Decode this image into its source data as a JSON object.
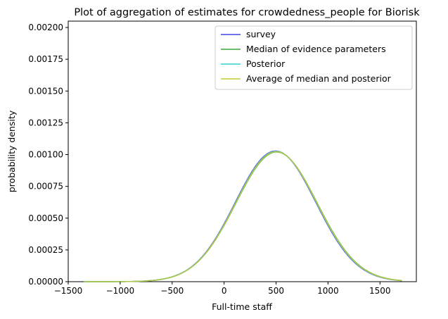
{
  "chart_data": {
    "type": "line",
    "title": "Plot of aggregation of estimates for crowdedness_people for Biorisk",
    "xlabel": "Full-time staff",
    "ylabel": "probability density",
    "xlim": [
      -1500,
      1850
    ],
    "ylim": [
      0,
      0.00205
    ],
    "x_ticks": [
      -1500,
      -1000,
      -500,
      0,
      500,
      1000,
      1500
    ],
    "x_tick_labels": [
      "−1500",
      "−1000",
      "−500",
      "0",
      "500",
      "1000",
      "1500"
    ],
    "y_ticks": [
      0,
      0.00025,
      0.0005,
      0.00075,
      0.001,
      0.00125,
      0.0015,
      0.00175,
      0.002
    ],
    "y_tick_labels": [
      "0.00000",
      "0.00025",
      "0.00050",
      "0.00075",
      "0.00100",
      "0.00125",
      "0.00150",
      "0.00175",
      "0.00200"
    ],
    "grid": false,
    "legend_position": "top-right",
    "x_range_of_curves": [
      -1350,
      1710
    ],
    "series": [
      {
        "name": "survey",
        "color": "#4040e0",
        "distribution": "normal",
        "mean": 495,
        "sd": 388
      },
      {
        "name": "Median of evidence parameters",
        "color": "#3aa83a",
        "distribution": "normal",
        "mean": 505,
        "sd": 391
      },
      {
        "name": "Posterior",
        "color": "#30d0d0",
        "distribution": "normal",
        "mean": 500,
        "sd": 389
      },
      {
        "name": "Average of median and posterior",
        "color": "#c8c830",
        "distribution": "normal",
        "mean": 502,
        "sd": 390
      }
    ]
  }
}
